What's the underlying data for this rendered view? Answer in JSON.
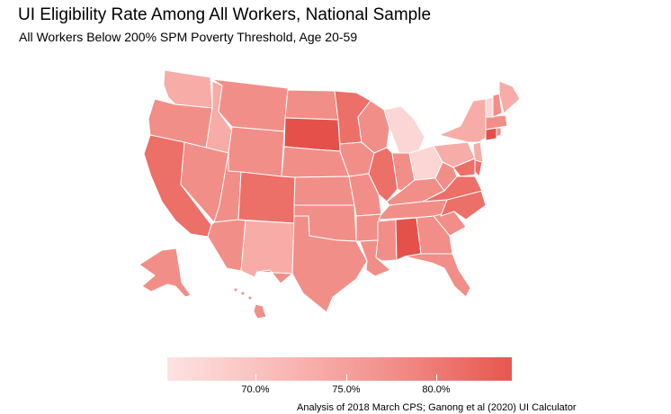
{
  "title": "UI Eligibility Rate Among All Workers, National Sample",
  "subtitle": "All Workers Below 200% SPM Poverty Threshold, Age 20-59",
  "caption": "Analysis of 2018 March CPS; Ganong et al (2020) UI Calculator",
  "legend": {
    "ticks": [
      "70.0%",
      "75.0%",
      "80.0%"
    ],
    "colors": {
      "low": "#fde3e2",
      "mid": "#f49a95",
      "high": "#e8564f"
    }
  },
  "map": {
    "states": [
      {
        "name": "WA",
        "level": "light"
      },
      {
        "name": "OR",
        "level": "mid"
      },
      {
        "name": "CA",
        "level": "dark"
      },
      {
        "name": "ID",
        "level": "light"
      },
      {
        "name": "NV",
        "level": "mid"
      },
      {
        "name": "MT",
        "level": "mid"
      },
      {
        "name": "WY",
        "level": "mid"
      },
      {
        "name": "UT",
        "level": "mid"
      },
      {
        "name": "AZ",
        "level": "mid"
      },
      {
        "name": "CO",
        "level": "dark"
      },
      {
        "name": "NM",
        "level": "light"
      },
      {
        "name": "ND",
        "level": "mid"
      },
      {
        "name": "SD",
        "level": "darkest"
      },
      {
        "name": "NE",
        "level": "mid"
      },
      {
        "name": "KS",
        "level": "mid"
      },
      {
        "name": "OK",
        "level": "mid"
      },
      {
        "name": "TX",
        "level": "mid"
      },
      {
        "name": "MN",
        "level": "dark"
      },
      {
        "name": "IA",
        "level": "mid"
      },
      {
        "name": "MO",
        "level": "mid"
      },
      {
        "name": "AR",
        "level": "mid"
      },
      {
        "name": "LA",
        "level": "mid"
      },
      {
        "name": "WI",
        "level": "mid"
      },
      {
        "name": "IL",
        "level": "dark"
      },
      {
        "name": "MI",
        "level": "pale"
      },
      {
        "name": "IN",
        "level": "mid"
      },
      {
        "name": "OH",
        "level": "pale"
      },
      {
        "name": "KY",
        "level": "mid"
      },
      {
        "name": "TN",
        "level": "mid"
      },
      {
        "name": "MS",
        "level": "mid"
      },
      {
        "name": "AL",
        "level": "darkest"
      },
      {
        "name": "GA",
        "level": "mid"
      },
      {
        "name": "FL",
        "level": "mid"
      },
      {
        "name": "SC",
        "level": "mid"
      },
      {
        "name": "NC",
        "level": "dark"
      },
      {
        "name": "VA",
        "level": "dark"
      },
      {
        "name": "WV",
        "level": "mid"
      },
      {
        "name": "PA",
        "level": "light"
      },
      {
        "name": "NY",
        "level": "light"
      },
      {
        "name": "NJ",
        "level": "light"
      },
      {
        "name": "DE",
        "level": "dark"
      },
      {
        "name": "MD",
        "level": "dark"
      },
      {
        "name": "CT",
        "level": "darkest"
      },
      {
        "name": "RI",
        "level": "mid"
      },
      {
        "name": "MA",
        "level": "mid"
      },
      {
        "name": "VT",
        "level": "pale"
      },
      {
        "name": "NH",
        "level": "mid"
      },
      {
        "name": "ME",
        "level": "light"
      },
      {
        "name": "AK",
        "level": "mid"
      },
      {
        "name": "HI",
        "level": "mid"
      }
    ],
    "level_colors": {
      "pale": "#fbd6d4",
      "light": "#f7aca7",
      "mid": "#f28e88",
      "dark": "#ec6f68",
      "darkest": "#e5514a"
    }
  }
}
